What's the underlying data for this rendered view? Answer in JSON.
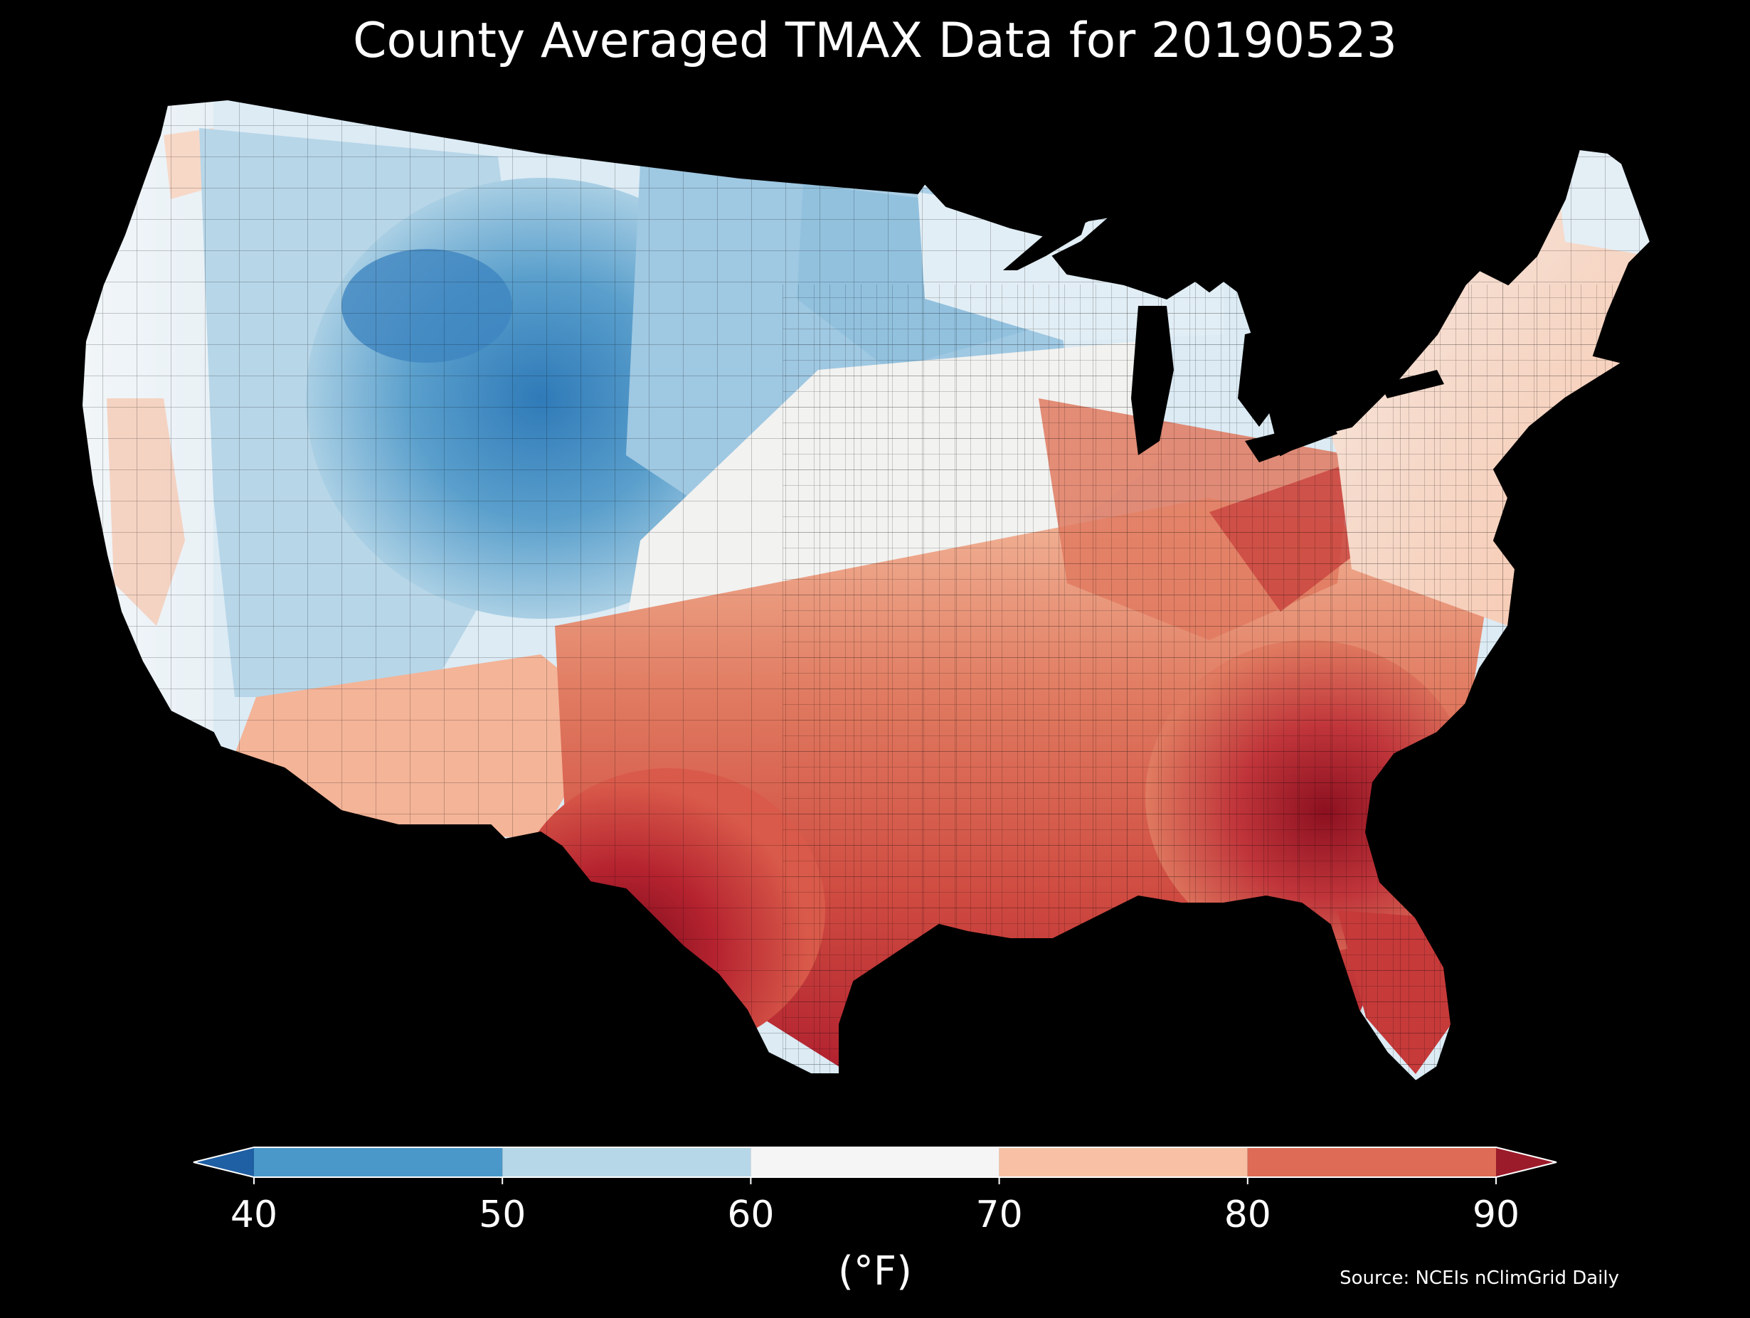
{
  "title": "County Averaged TMAX Data for 20190523",
  "source": "Source: NCEIs nClimGrid Daily",
  "colorbar": {
    "unit_label": "(°F)",
    "ticks": [
      "40",
      "50",
      "60",
      "70",
      "80",
      "90"
    ],
    "bins": [
      {
        "from": 40,
        "to": 50,
        "color": "#4a98c9"
      },
      {
        "from": 50,
        "to": 60,
        "color": "#b6d7e8"
      },
      {
        "from": 60,
        "to": 70,
        "color": "#f5f5f5"
      },
      {
        "from": 70,
        "to": 80,
        "color": "#f8c1a5"
      },
      {
        "from": 80,
        "to": 90,
        "color": "#dd6b55"
      }
    ],
    "under_color": "#1f5fa3",
    "over_color": "#9b1b2a"
  },
  "map": {
    "subject": "Contiguous United States, county-level maximum temperature",
    "background": "#000000",
    "border_color": "#000000"
  },
  "chart_data": {
    "type": "heatmap",
    "title": "County Averaged TMAX Data for 20190523",
    "colorbar_label": "(°F)",
    "colorbar_range": [
      40,
      90
    ],
    "colorbar_ticks": [
      40,
      50,
      60,
      70,
      80,
      90
    ]
  }
}
